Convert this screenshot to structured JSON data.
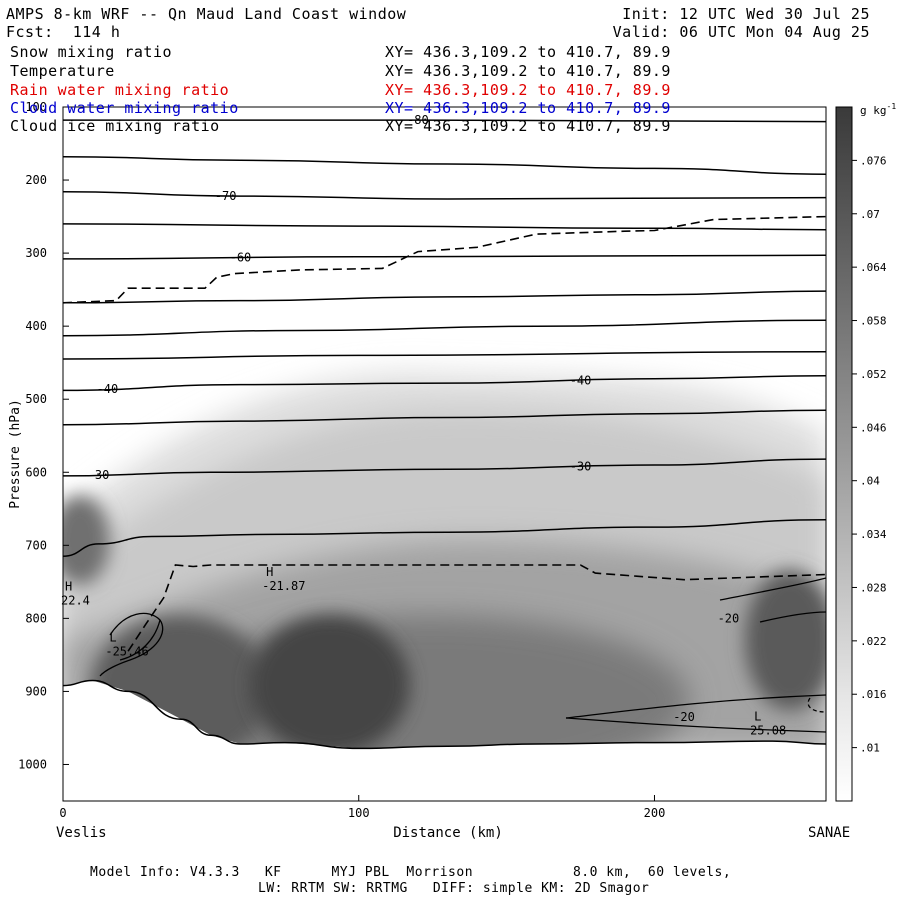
{
  "header": {
    "title": "AMPS 8-km WRF -- Qn Maud Land Coast window",
    "init": "Init: 12 UTC Wed 30 Jul 25",
    "fcst": "Fcst:  114 h",
    "valid": "Valid: 06 UTC Mon 04 Aug 25"
  },
  "legend": {
    "items": [
      {
        "name": "Snow mixing ratio",
        "xy": "XY= 436.3,109.2 to 410.7, 89.9",
        "color": "#000000"
      },
      {
        "name": "Temperature",
        "xy": "XY= 436.3,109.2 to 410.7, 89.9",
        "color": "#000000"
      },
      {
        "name": "Rain water mixing ratio",
        "xy": "XY= 436.3,109.2 to 410.7, 89.9",
        "color": "#e00000"
      },
      {
        "name": "Cloud water mixing ratio",
        "xy": "XY= 436.3,109.2 to 410.7, 89.9",
        "color": "#0000d0"
      },
      {
        "name": "Cloud ice mixing ratio",
        "xy": "XY= 436.3,109.2 to 410.7, 89.9",
        "color": "#000000"
      }
    ]
  },
  "footer": {
    "line1": "Model Info: V4.3.3   KF      MYJ PBL  Morrison            8.0 km,  60 levels,",
    "line2": "LW: RRTM SW: RRTMG   DIFF: simple KM: 2D Smagor"
  },
  "chart_data": {
    "type": "heatmap",
    "xlabel": "Distance (km)",
    "ylabel": "Pressure (hPa)",
    "xlim": [
      0,
      258
    ],
    "ylim": [
      100,
      1050
    ],
    "y_scale": "linear, inverted",
    "x_ticks": [
      0,
      100,
      200
    ],
    "y_ticks": [
      100,
      200,
      300,
      400,
      500,
      600,
      700,
      800,
      900,
      1000
    ],
    "x_end_labels": {
      "left": "Veslis",
      "right": "SANAE"
    },
    "colorbar": {
      "unit": "g kg",
      "unit_exp": "-1",
      "ticks": [
        ".01",
        ".016",
        ".022",
        ".028",
        ".034",
        ".04",
        ".046",
        ".052",
        ".058",
        ".064",
        ".07",
        ".076"
      ],
      "tick_values": [
        0.01,
        0.016,
        0.022,
        0.028,
        0.034,
        0.04,
        0.046,
        0.052,
        0.058,
        0.064,
        0.07,
        0.076
      ],
      "range": [
        0.004,
        0.082
      ]
    },
    "shading_field": "Snow mixing ratio",
    "snow_maxima": [
      {
        "x": 85,
        "p": 860,
        "value": 0.078
      },
      {
        "x": 30,
        "p": 850,
        "value": 0.07
      },
      {
        "x": 245,
        "p": 830,
        "value": 0.064
      },
      {
        "x": 150,
        "p": 790,
        "value": 0.055
      }
    ],
    "temperature_contours": [
      {
        "value": -80,
        "label": "-80",
        "points": [
          [
            0,
            118
          ],
          [
            120,
            118
          ],
          [
            258,
            120
          ]
        ]
      },
      {
        "value": -75,
        "label": "",
        "points": [
          [
            0,
            168
          ],
          [
            60,
            173
          ],
          [
            130,
            178
          ],
          [
            200,
            184
          ],
          [
            258,
            192
          ]
        ]
      },
      {
        "value": -70,
        "label": "-70",
        "points": [
          [
            0,
            216
          ],
          [
            60,
            222
          ],
          [
            130,
            226
          ],
          [
            258,
            224
          ]
        ]
      },
      {
        "value": -65,
        "label": "",
        "points": [
          [
            0,
            260
          ],
          [
            100,
            263
          ],
          [
            200,
            266
          ],
          [
            258,
            268
          ]
        ]
      },
      {
        "value": -60,
        "label": "-60",
        "points": [
          [
            0,
            308
          ],
          [
            100,
            305
          ],
          [
            258,
            303
          ]
        ]
      },
      {
        "value": -55,
        "label": "",
        "points": [
          [
            0,
            368
          ],
          [
            60,
            365
          ],
          [
            130,
            360
          ],
          [
            200,
            357
          ],
          [
            258,
            352
          ]
        ]
      },
      {
        "value": -50,
        "label": "",
        "points": [
          [
            0,
            413
          ],
          [
            80,
            406
          ],
          [
            160,
            400
          ],
          [
            258,
            392
          ]
        ]
      },
      {
        "value": -45,
        "label": "",
        "points": [
          [
            0,
            445
          ],
          [
            100,
            440
          ],
          [
            258,
            435
          ]
        ]
      },
      {
        "value": -40,
        "label": "-40",
        "points": [
          [
            0,
            488
          ],
          [
            60,
            480
          ],
          [
            130,
            478
          ],
          [
            200,
            472
          ],
          [
            258,
            468
          ]
        ]
      },
      {
        "value": -35,
        "label": "",
        "points": [
          [
            0,
            535
          ],
          [
            60,
            530
          ],
          [
            130,
            525
          ],
          [
            200,
            520
          ],
          [
            258,
            515
          ]
        ]
      },
      {
        "value": -30,
        "label": "-30",
        "points": [
          [
            0,
            605
          ],
          [
            50,
            600
          ],
          [
            130,
            596
          ],
          [
            200,
            590
          ],
          [
            258,
            582
          ]
        ]
      },
      {
        "value": -25,
        "label": "",
        "points": [
          [
            0,
            715
          ],
          [
            12,
            698
          ],
          [
            30,
            688
          ],
          [
            70,
            685
          ],
          [
            130,
            682
          ],
          [
            200,
            675
          ],
          [
            258,
            665
          ]
        ]
      }
    ],
    "dashed_contours": [
      {
        "points": [
          [
            0,
            368
          ],
          [
            18,
            365
          ],
          [
            22,
            348
          ],
          [
            48,
            348
          ],
          [
            52,
            333
          ],
          [
            58,
            328
          ],
          [
            80,
            323
          ],
          [
            108,
            321
          ],
          [
            120,
            298
          ],
          [
            140,
            292
          ],
          [
            160,
            274
          ],
          [
            190,
            270
          ],
          [
            200,
            269
          ],
          [
            220,
            254
          ],
          [
            258,
            250
          ]
        ]
      },
      {
        "points": [
          [
            22,
            845
          ],
          [
            28,
            808
          ],
          [
            34,
            772
          ],
          [
            38,
            727
          ],
          [
            44,
            729
          ],
          [
            50,
            727
          ],
          [
            100,
            727
          ],
          [
            175,
            727
          ],
          [
            180,
            738
          ],
          [
            210,
            747
          ],
          [
            258,
            740
          ]
        ]
      }
    ],
    "extrema": [
      {
        "type": "H",
        "value": "22.4",
        "x": 0,
        "p": 762
      },
      {
        "type": "H",
        "value": "-21.87",
        "x": 68,
        "p": 742
      },
      {
        "type": "L",
        "value": "-25.46",
        "x": 15,
        "p": 832
      },
      {
        "type": "L",
        "value": "25.08",
        "x": 233,
        "p": 940
      }
    ],
    "lower_labels": [
      {
        "label": "-20",
        "x": 225,
        "p": 800
      },
      {
        "label": "-20",
        "x": 210,
        "p": 935
      }
    ],
    "terrain": [
      [
        0,
        892
      ],
      [
        10,
        885
      ],
      [
        22,
        900
      ],
      [
        40,
        938
      ],
      [
        50,
        960
      ],
      [
        60,
        972
      ],
      [
        75,
        970
      ],
      [
        100,
        978
      ],
      [
        130,
        975
      ],
      [
        160,
        972
      ],
      [
        200,
        970
      ],
      [
        240,
        968
      ],
      [
        258,
        972
      ]
    ]
  }
}
